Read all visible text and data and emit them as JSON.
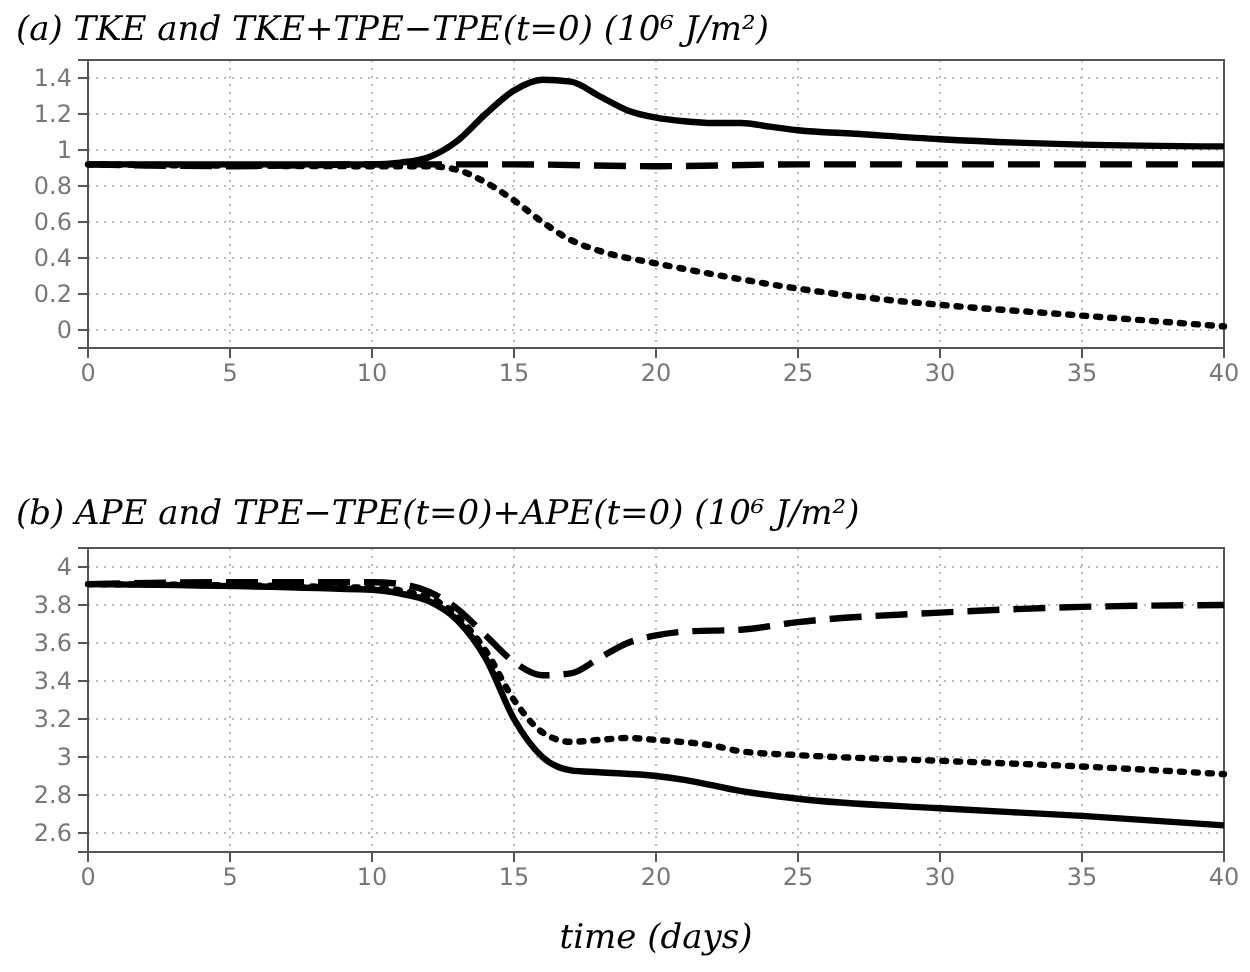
{
  "chart_data": [
    {
      "type": "line",
      "title": "(a)  TKE and TKE+TPE−TPE(t=0) (10⁶ J/m²)",
      "xlim": [
        0,
        40
      ],
      "xticks": [
        0,
        5,
        10,
        15,
        20,
        25,
        30,
        35,
        40
      ],
      "ylim": [
        -0.1,
        1.5
      ],
      "yticks": [
        0,
        0.2,
        0.4,
        0.6,
        0.8,
        1,
        1.2,
        1.4
      ],
      "grid": true,
      "series": [
        {
          "color": "#000000",
          "line_style": "solid",
          "x": [
            0,
            10,
            11,
            12,
            13,
            14,
            15,
            16,
            17,
            18,
            19,
            20,
            21,
            22,
            23,
            24,
            25,
            27,
            30,
            35,
            40
          ],
          "values": [
            0.92,
            0.92,
            0.93,
            0.96,
            1.05,
            1.2,
            1.33,
            1.39,
            1.38,
            1.3,
            1.22,
            1.18,
            1.16,
            1.15,
            1.15,
            1.13,
            1.11,
            1.09,
            1.06,
            1.03,
            1.02
          ]
        },
        {
          "color": "#000000",
          "line_style": "dashed",
          "x": [
            0,
            5,
            10,
            15,
            20,
            25,
            30,
            40
          ],
          "values": [
            0.92,
            0.91,
            0.92,
            0.92,
            0.91,
            0.92,
            0.92,
            0.92
          ]
        },
        {
          "color": "#000000",
          "line_style": "dotted",
          "x": [
            0,
            10,
            12,
            13,
            14,
            15,
            16,
            17,
            18,
            20,
            22,
            25,
            28,
            30,
            35,
            40
          ],
          "values": [
            0.92,
            0.91,
            0.91,
            0.89,
            0.82,
            0.72,
            0.6,
            0.5,
            0.44,
            0.37,
            0.31,
            0.23,
            0.17,
            0.14,
            0.08,
            0.02
          ]
        }
      ]
    },
    {
      "type": "line",
      "title": "(b) APE and TPE−TPE(t=0)+APE(t=0) (10⁶ J/m²)",
      "xlabel": "time (days)",
      "xlim": [
        0,
        40
      ],
      "xticks": [
        0,
        5,
        10,
        15,
        20,
        25,
        30,
        35,
        40
      ],
      "ylim": [
        2.5,
        4.1
      ],
      "yticks": [
        2.6,
        2.8,
        3,
        3.2,
        3.4,
        3.6,
        3.8,
        4
      ],
      "grid": true,
      "series": [
        {
          "color": "#000000",
          "line_style": "solid",
          "x": [
            0,
            10,
            11,
            12,
            13,
            14,
            15,
            16,
            17,
            18,
            20,
            21,
            23,
            25,
            30,
            35,
            40
          ],
          "values": [
            3.91,
            3.88,
            3.86,
            3.82,
            3.72,
            3.52,
            3.2,
            3.0,
            2.93,
            2.92,
            2.9,
            2.88,
            2.82,
            2.78,
            2.73,
            2.69,
            2.64
          ]
        },
        {
          "color": "#000000",
          "line_style": "dashed",
          "x": [
            0,
            5,
            10,
            11,
            12,
            13,
            14,
            15,
            16,
            17,
            18,
            19,
            20,
            21,
            23,
            25,
            30,
            35,
            40
          ],
          "values": [
            3.91,
            3.92,
            3.92,
            3.91,
            3.87,
            3.78,
            3.64,
            3.5,
            3.43,
            3.44,
            3.52,
            3.6,
            3.64,
            3.66,
            3.67,
            3.71,
            3.76,
            3.79,
            3.8
          ]
        },
        {
          "color": "#000000",
          "line_style": "dotted",
          "x": [
            0,
            10,
            12,
            13,
            14,
            15,
            16,
            17,
            18,
            19,
            20,
            22,
            23,
            25,
            30,
            35,
            40
          ],
          "values": [
            3.91,
            3.89,
            3.84,
            3.74,
            3.56,
            3.3,
            3.13,
            3.08,
            3.09,
            3.1,
            3.09,
            3.06,
            3.03,
            3.01,
            2.98,
            2.95,
            2.91
          ]
        }
      ]
    }
  ]
}
